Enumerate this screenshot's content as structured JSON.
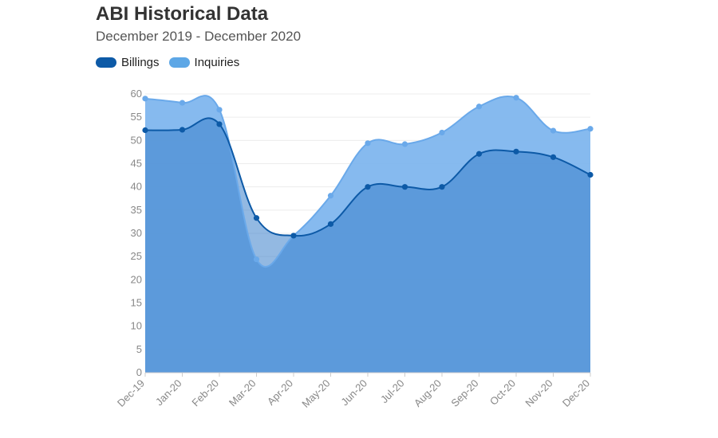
{
  "header": {
    "title": "ABI Historical Data",
    "subtitle": "December 2019 - December 2020"
  },
  "legend": {
    "items": [
      {
        "label": "Billings",
        "color": "#0d5aa7"
      },
      {
        "label": "Inquiries",
        "color": "#5da7e6"
      }
    ]
  },
  "chart_data": {
    "type": "area",
    "categories": [
      "Dec-19",
      "Jan-20",
      "Feb-20",
      "Mar-20",
      "Apr-20",
      "May-20",
      "Jun-20",
      "Jul-20",
      "Aug-20",
      "Sep-20",
      "Oct-20",
      "Nov-20",
      "Dec-20"
    ],
    "series": [
      {
        "name": "Inquiries",
        "values": [
          59.0,
          58.1,
          56.6,
          24.4,
          29.5,
          38.1,
          49.4,
          49.2,
          51.7,
          57.3,
          59.2,
          52.1,
          52.5
        ],
        "color": "#5da7e6"
      },
      {
        "name": "Billings",
        "values": [
          52.2,
          52.3,
          53.5,
          33.3,
          29.5,
          32.0,
          40.0,
          40.0,
          40.0,
          47.1,
          47.6,
          46.4,
          42.6
        ],
        "color": "#0d5aa7"
      }
    ],
    "yticks": [
      0,
      5,
      10,
      15,
      20,
      25,
      30,
      35,
      40,
      45,
      50,
      55,
      60
    ],
    "ylim": [
      0,
      60
    ],
    "grid": true,
    "legend_position": "top-left"
  }
}
